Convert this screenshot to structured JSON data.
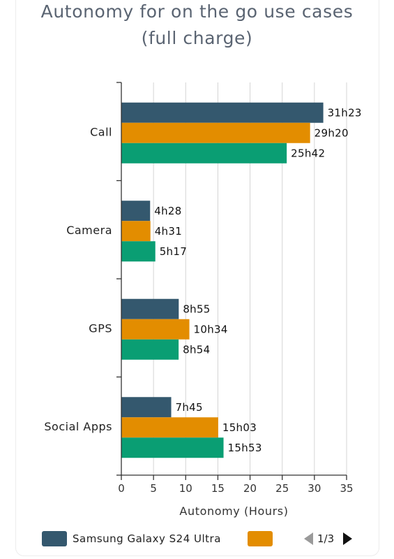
{
  "chart_data": {
    "type": "bar",
    "orientation": "horizontal",
    "title": [
      "Autonomy for on the go use cases",
      "(full charge)"
    ],
    "xlabel": "Autonomy (Hours)",
    "xlim": [
      0,
      35
    ],
    "xticks": [
      "0",
      "5",
      "10",
      "15",
      "20",
      "25",
      "30",
      "35"
    ],
    "grid": true,
    "categories": [
      "Call",
      "Camera",
      "GPS",
      "Social Apps"
    ],
    "series": [
      {
        "name": "Samsung Galaxy S24 Ultra",
        "color": "#34586e",
        "values": [
          31.38,
          4.47,
          8.92,
          7.75
        ],
        "labels": [
          "31h23",
          "4h28",
          "8h55",
          "7h45"
        ]
      },
      {
        "name": "",
        "color": "#e38d00",
        "values": [
          29.33,
          4.52,
          10.57,
          15.05
        ],
        "labels": [
          "29h20",
          "4h31",
          "10h34",
          "15h03"
        ]
      },
      {
        "name": "",
        "color": "#0a9e73",
        "values": [
          25.7,
          5.28,
          8.9,
          15.88
        ],
        "labels": [
          "25h42",
          "5h17",
          "8h54",
          "15h53"
        ]
      }
    ]
  },
  "legend": {
    "items": [
      {
        "label": "Samsung Galaxy S24 Ultra",
        "color": "#34586e"
      },
      {
        "label": "",
        "color": "#e38d00"
      }
    ],
    "pager": "1/3"
  }
}
